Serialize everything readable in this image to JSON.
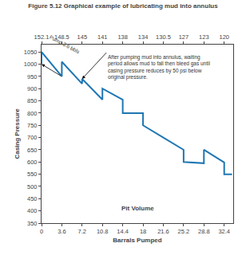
{
  "chart_data": {
    "type": "line",
    "title": "Figure 5.12 Graphical example of lubricating mud into annulus",
    "xlabel": "Barrals Pumped",
    "ylabel": "Casing Pressure",
    "x": [
      0.0,
      0.0,
      3.6,
      3.6,
      7.2,
      7.2,
      10.8,
      10.8,
      14.4,
      14.4,
      18.0,
      18.0,
      21.6,
      21.6,
      25.2,
      25.2,
      28.8,
      28.8,
      32.4,
      32.4,
      33.8
    ],
    "values": [
      1000,
      1050,
      950,
      1010,
      920,
      940,
      855,
      900,
      855,
      800,
      800,
      750,
      700,
      700,
      650,
      600,
      595,
      650,
      598,
      550,
      550
    ],
    "xlim": [
      0,
      34
    ],
    "ylim": [
      350,
      1080
    ],
    "xticks": [
      0,
      3.6,
      7.2,
      10.8,
      14.4,
      18,
      21.6,
      25.2,
      28.8,
      32.4
    ],
    "yticks": [
      350,
      400,
      450,
      500,
      550,
      600,
      650,
      700,
      750,
      800,
      850,
      900,
      950,
      1000,
      1050
    ],
    "x2lim": [
      0,
      34
    ],
    "x2ticks": [
      {
        "value": 0,
        "label": "152.1"
      },
      {
        "value": 3.6,
        "label": "148.5"
      },
      {
        "value": 7.2,
        "label": "145"
      },
      {
        "value": 10.8,
        "label": "141"
      },
      {
        "value": 14.4,
        "label": "138"
      },
      {
        "value": 18,
        "label": "134"
      },
      {
        "value": 21.6,
        "label": "130.5"
      },
      {
        "value": 25.2,
        "label": "127"
      },
      {
        "value": 28.8,
        "label": "123"
      },
      {
        "value": 32.4,
        "label": "120"
      }
    ],
    "grid": false,
    "annotations": [
      "Pit Volume",
      "Pump 3.6 bbls",
      "After pumping mud into annulus, waiting\nperiod allows mud to fall then bleed gas until\ncasing pressure reduces by 50 psi below\noriginal pressure."
    ]
  }
}
